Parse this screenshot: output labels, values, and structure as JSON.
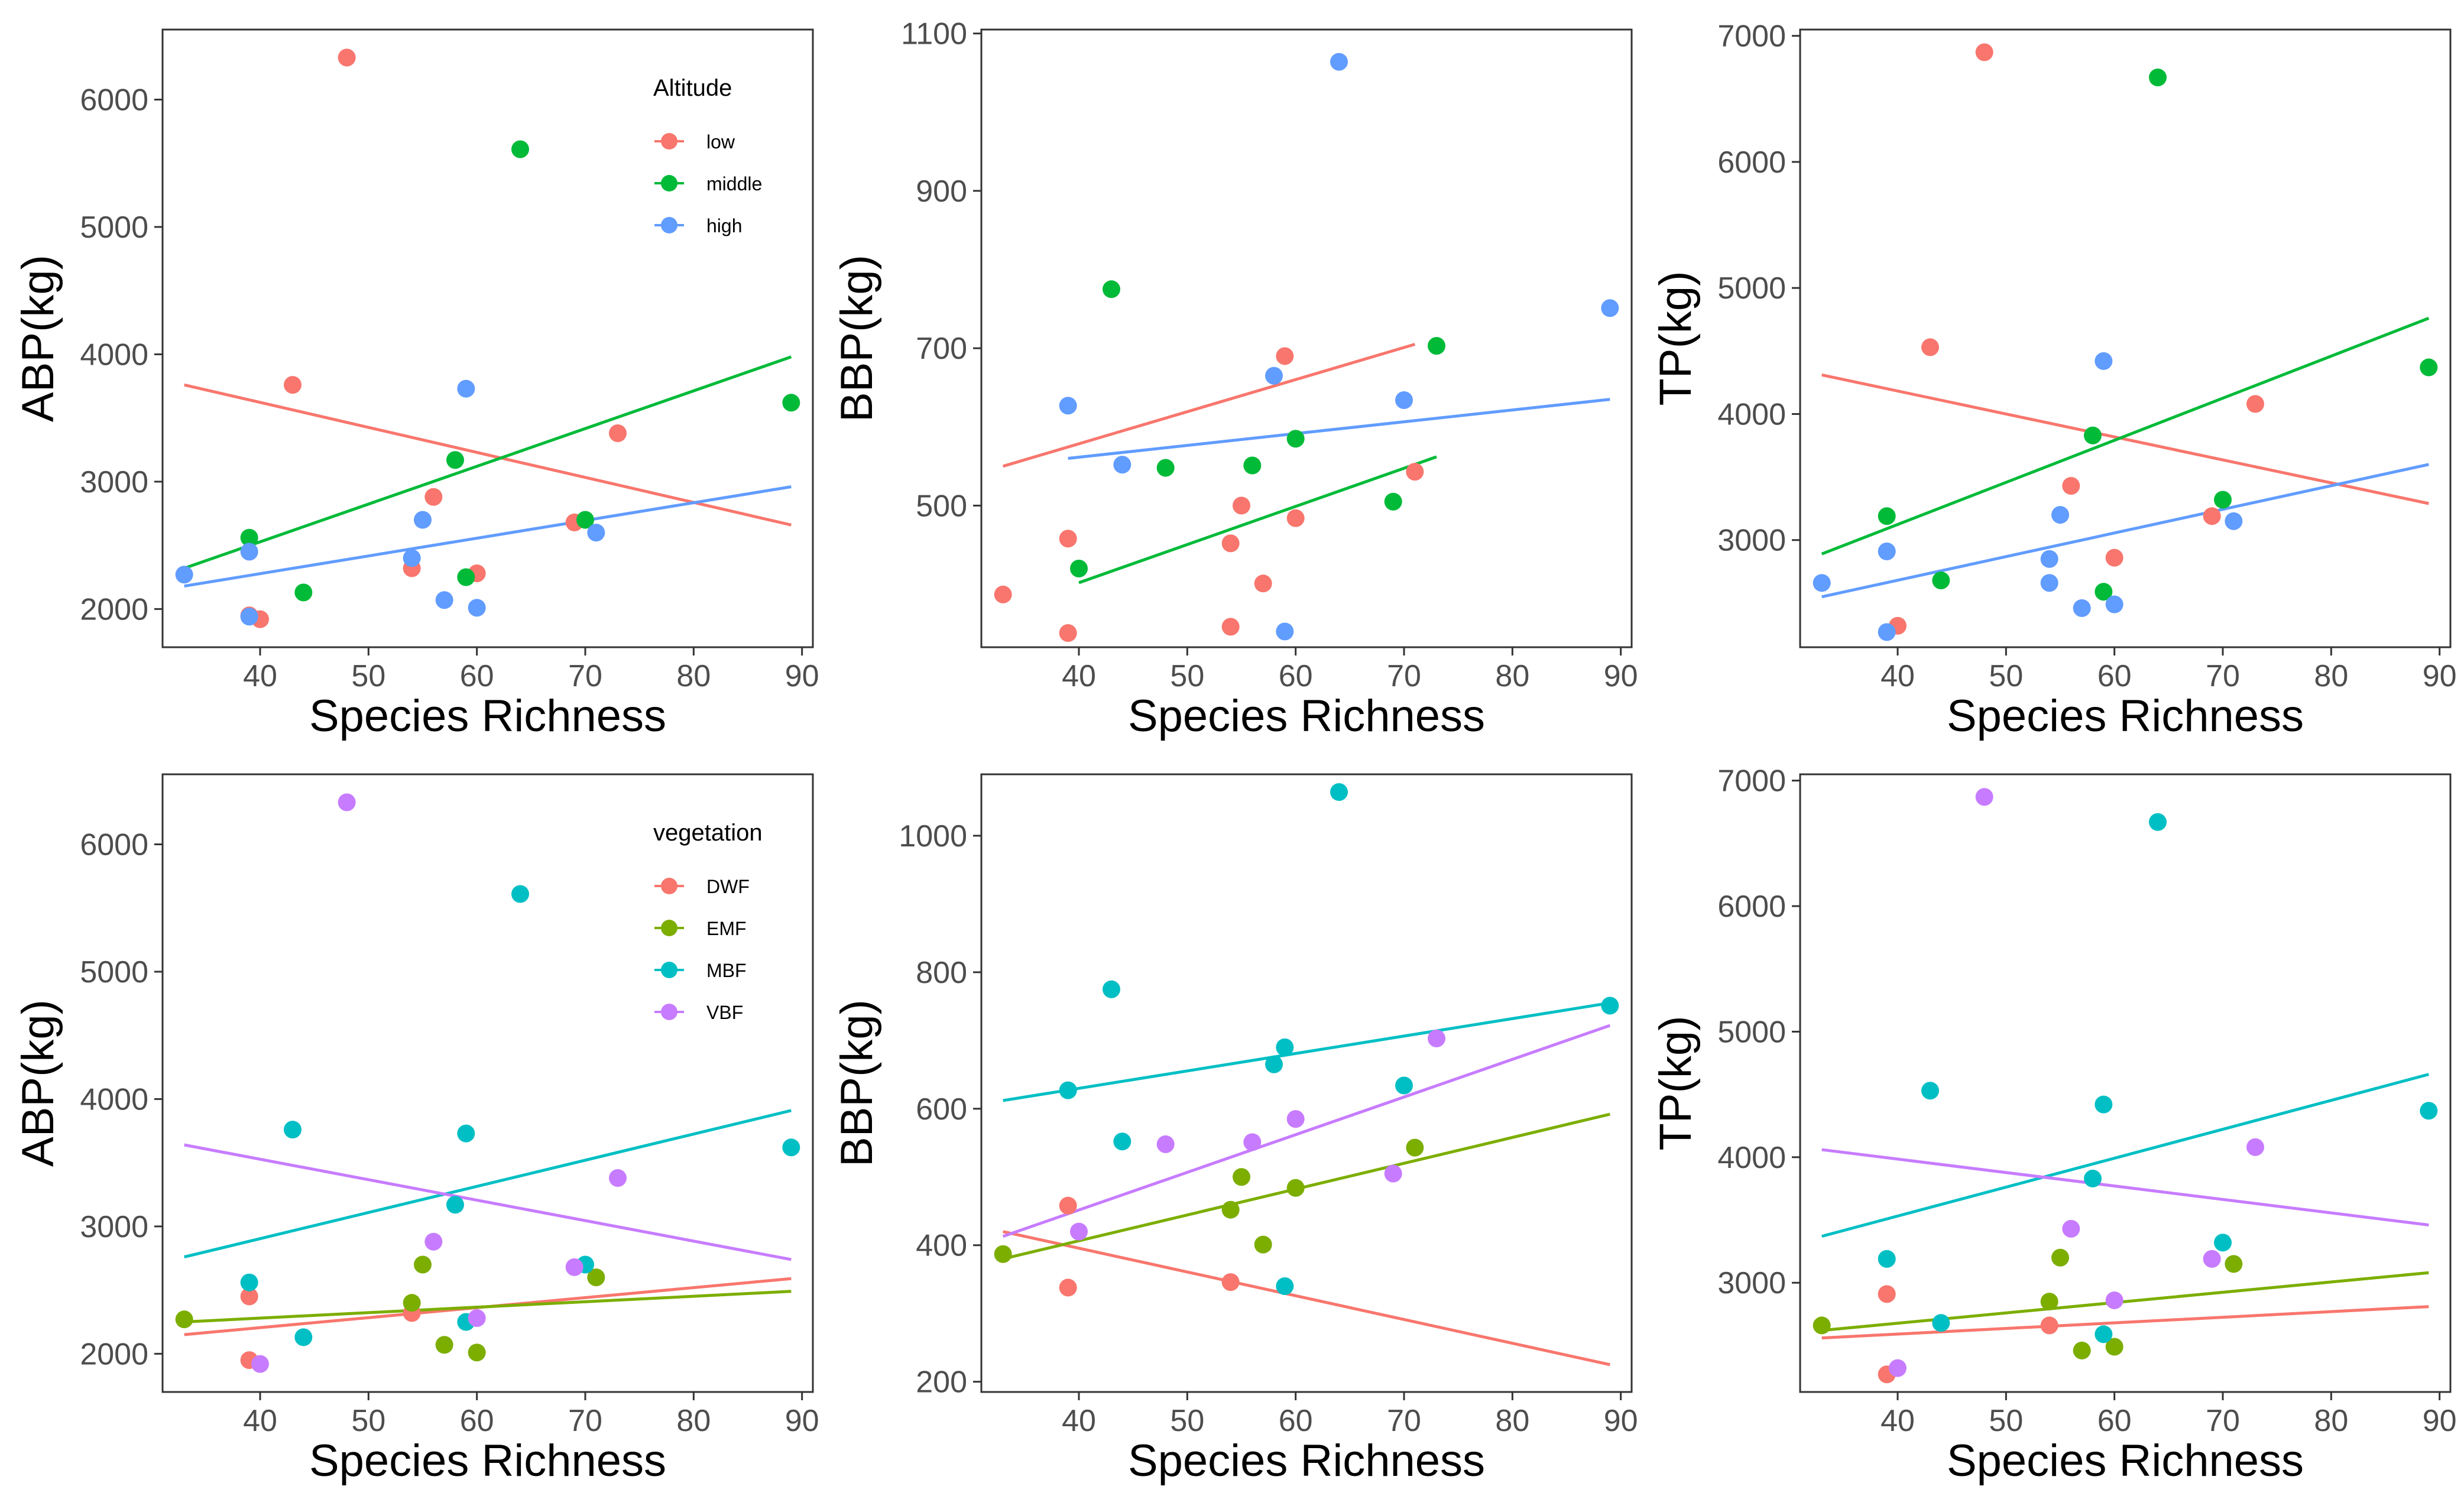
{
  "colors": {
    "low": "#F8766D",
    "middle": "#00BA38",
    "high": "#619CFF",
    "DWF": "#F8766D",
    "EMF": "#7CAE00",
    "MBF": "#00BFC4",
    "VBF": "#C77CFF",
    "axis": "#333333",
    "tick_text": "#4d4d4d"
  },
  "chart_data": [
    {
      "id": "abp-altitude",
      "type": "scatter",
      "xlabel": "Species Richness",
      "ylabel": "ABP(kg)",
      "xlim": [
        31,
        91
      ],
      "ylim": [
        1700,
        6550
      ],
      "xticks": [
        40,
        50,
        60,
        70,
        80,
        90
      ],
      "yticks": [
        2000,
        3000,
        4000,
        5000,
        6000
      ],
      "legend": {
        "title": "Altitude",
        "position": "top-right"
      },
      "series": [
        {
          "name": "low",
          "color_key": "low",
          "points": [
            [
              39,
              1950
            ],
            [
              40,
              1920
            ],
            [
              43,
              3760
            ],
            [
              48,
              6330
            ],
            [
              54,
              2320
            ],
            [
              56,
              2880
            ],
            [
              60,
              2280
            ],
            [
              69,
              2680
            ],
            [
              73,
              3380
            ]
          ],
          "fit": [
            [
              33,
              3760
            ],
            [
              89,
              2660
            ]
          ]
        },
        {
          "name": "middle",
          "color_key": "middle",
          "points": [
            [
              39,
              2560
            ],
            [
              44,
              2130
            ],
            [
              58,
              3170
            ],
            [
              59,
              2250
            ],
            [
              64,
              5610
            ],
            [
              70,
              2700
            ],
            [
              89,
              3620
            ]
          ],
          "fit": [
            [
              33,
              2320
            ],
            [
              89,
              3980
            ]
          ]
        },
        {
          "name": "high",
          "color_key": "high",
          "points": [
            [
              33,
              2270
            ],
            [
              39,
              1940
            ],
            [
              39,
              2450
            ],
            [
              54,
              2400
            ],
            [
              55,
              2700
            ],
            [
              57,
              2070
            ],
            [
              59,
              3730
            ],
            [
              60,
              2010
            ],
            [
              71,
              2600
            ]
          ],
          "fit": [
            [
              33,
              2180
            ],
            [
              89,
              2960
            ]
          ]
        }
      ]
    },
    {
      "id": "bbp-altitude",
      "type": "scatter",
      "xlabel": "Species Richness",
      "ylabel": "BBP(kg)",
      "xlim": [
        31,
        91
      ],
      "ylim": [
        320,
        1105
      ],
      "xticks": [
        40,
        50,
        60,
        70,
        80,
        90
      ],
      "yticks": [
        500,
        700,
        900,
        1100
      ],
      "series": [
        {
          "name": "low",
          "color_key": "low",
          "points": [
            [
              33,
              387
            ],
            [
              39,
              338
            ],
            [
              39,
              458
            ],
            [
              54,
              346
            ],
            [
              54,
              452
            ],
            [
              55,
              500
            ],
            [
              57,
              401
            ],
            [
              59,
              690
            ],
            [
              60,
              484
            ],
            [
              71,
              543
            ]
          ],
          "fit": [
            [
              33,
              550
            ],
            [
              71,
              705
            ]
          ]
        },
        {
          "name": "middle",
          "color_key": "middle",
          "points": [
            [
              40,
              420
            ],
            [
              43,
              775
            ],
            [
              48,
              548
            ],
            [
              56,
              551
            ],
            [
              60,
              585
            ],
            [
              69,
              505
            ],
            [
              73,
              703
            ]
          ],
          "fit": [
            [
              40,
              402
            ],
            [
              73,
              562
            ]
          ]
        },
        {
          "name": "high",
          "color_key": "high",
          "points": [
            [
              39,
              627
            ],
            [
              44,
              552
            ],
            [
              58,
              665
            ],
            [
              59,
              340
            ],
            [
              64,
              1064
            ],
            [
              70,
              634
            ],
            [
              89,
              751
            ]
          ],
          "fit": [
            [
              39,
              560
            ],
            [
              89,
              635
            ]
          ]
        }
      ]
    },
    {
      "id": "tp-altitude",
      "type": "scatter",
      "xlabel": "Species Richness",
      "ylabel": "TP(kg)",
      "xlim": [
        31,
        91
      ],
      "ylim": [
        2150,
        7050
      ],
      "xticks": [
        40,
        50,
        60,
        70,
        80,
        90
      ],
      "yticks": [
        3000,
        4000,
        5000,
        6000,
        7000
      ],
      "series": [
        {
          "name": "low",
          "color_key": "low",
          "points": [
            [
              40,
              2320
            ],
            [
              43,
              4530
            ],
            [
              48,
              6870
            ],
            [
              56,
              3430
            ],
            [
              60,
              2860
            ],
            [
              69,
              3190
            ],
            [
              73,
              4080
            ]
          ],
          "fit": [
            [
              33,
              4310
            ],
            [
              89,
              3290
            ]
          ]
        },
        {
          "name": "middle",
          "color_key": "middle",
          "points": [
            [
              39,
              3190
            ],
            [
              44,
              2680
            ],
            [
              58,
              3830
            ],
            [
              59,
              2590
            ],
            [
              64,
              6670
            ],
            [
              70,
              3320
            ],
            [
              89,
              4370
            ]
          ],
          "fit": [
            [
              33,
              2890
            ],
            [
              89,
              4760
            ]
          ]
        },
        {
          "name": "high",
          "color_key": "high",
          "points": [
            [
              33,
              2660
            ],
            [
              39,
              2270
            ],
            [
              39,
              2910
            ],
            [
              54,
              2850
            ],
            [
              54,
              2660
            ],
            [
              55,
              3200
            ],
            [
              57,
              2460
            ],
            [
              59,
              4420
            ],
            [
              60,
              2490
            ],
            [
              71,
              3150
            ]
          ],
          "fit": [
            [
              33,
              2550
            ],
            [
              89,
              3600
            ]
          ]
        }
      ]
    },
    {
      "id": "abp-vegetation",
      "type": "scatter",
      "xlabel": "Species Richness",
      "ylabel": "ABP(kg)",
      "xlim": [
        31,
        91
      ],
      "ylim": [
        1700,
        6550
      ],
      "xticks": [
        40,
        50,
        60,
        70,
        80,
        90
      ],
      "yticks": [
        2000,
        3000,
        4000,
        5000,
        6000
      ],
      "legend": {
        "title": "vegetation",
        "position": "top-right"
      },
      "series": [
        {
          "name": "DWF",
          "color_key": "DWF",
          "points": [
            [
              39,
              2450
            ],
            [
              39,
              1950
            ],
            [
              54,
              2320
            ]
          ],
          "fit": [
            [
              33,
              2150
            ],
            [
              89,
              2590
            ]
          ]
        },
        {
          "name": "EMF",
          "color_key": "EMF",
          "points": [
            [
              33,
              2270
            ],
            [
              54,
              2400
            ],
            [
              55,
              2700
            ],
            [
              57,
              2070
            ],
            [
              60,
              2010
            ],
            [
              71,
              2600
            ]
          ],
          "fit": [
            [
              33,
              2250
            ],
            [
              89,
              2490
            ]
          ]
        },
        {
          "name": "MBF",
          "color_key": "MBF",
          "points": [
            [
              39,
              2560
            ],
            [
              43,
              3760
            ],
            [
              44,
              2130
            ],
            [
              58,
              3170
            ],
            [
              59,
              3730
            ],
            [
              59,
              2250
            ],
            [
              64,
              5610
            ],
            [
              70,
              2700
            ],
            [
              89,
              3620
            ]
          ],
          "fit": [
            [
              33,
              2760
            ],
            [
              89,
              3910
            ]
          ]
        },
        {
          "name": "VBF",
          "color_key": "VBF",
          "points": [
            [
              40,
              1920
            ],
            [
              48,
              6330
            ],
            [
              56,
              2880
            ],
            [
              60,
              2280
            ],
            [
              69,
              2680
            ],
            [
              73,
              3380
            ]
          ],
          "fit": [
            [
              33,
              3640
            ],
            [
              89,
              2740
            ]
          ]
        }
      ]
    },
    {
      "id": "bbp-vegetation",
      "type": "scatter",
      "xlabel": "Species Richness",
      "ylabel": "BBP(kg)",
      "xlim": [
        31,
        91
      ],
      "ylim": [
        185,
        1090
      ],
      "xticks": [
        40,
        50,
        60,
        70,
        80,
        90
      ],
      "yticks": [
        200,
        400,
        600,
        800,
        1000
      ],
      "series": [
        {
          "name": "DWF",
          "color_key": "DWF",
          "points": [
            [
              39,
              338
            ],
            [
              39,
              458
            ],
            [
              54,
              346
            ]
          ],
          "fit": [
            [
              33,
              420
            ],
            [
              89,
              225
            ]
          ]
        },
        {
          "name": "EMF",
          "color_key": "EMF",
          "points": [
            [
              33,
              387
            ],
            [
              54,
              452
            ],
            [
              55,
              500
            ],
            [
              57,
              401
            ],
            [
              60,
              484
            ],
            [
              71,
              543
            ]
          ],
          "fit": [
            [
              33,
              380
            ],
            [
              89,
              592
            ]
          ]
        },
        {
          "name": "MBF",
          "color_key": "MBF",
          "points": [
            [
              39,
              627
            ],
            [
              43,
              775
            ],
            [
              44,
              552
            ],
            [
              58,
              665
            ],
            [
              59,
              690
            ],
            [
              59,
              340
            ],
            [
              64,
              1064
            ],
            [
              70,
              634
            ],
            [
              89,
              751
            ]
          ],
          "fit": [
            [
              33,
              612
            ],
            [
              89,
              755
            ]
          ]
        },
        {
          "name": "VBF",
          "color_key": "VBF",
          "points": [
            [
              40,
              420
            ],
            [
              48,
              548
            ],
            [
              56,
              551
            ],
            [
              60,
              585
            ],
            [
              69,
              505
            ],
            [
              73,
              703
            ]
          ],
          "fit": [
            [
              33,
              413
            ],
            [
              89,
              722
            ]
          ]
        }
      ]
    },
    {
      "id": "tp-vegetation",
      "type": "scatter",
      "xlabel": "Species Richness",
      "ylabel": "TP(kg)",
      "xlim": [
        31,
        91
      ],
      "ylim": [
        2130,
        7050
      ],
      "xticks": [
        40,
        50,
        60,
        70,
        80,
        90
      ],
      "yticks": [
        3000,
        4000,
        5000,
        6000,
        7000
      ],
      "series": [
        {
          "name": "DWF",
          "color_key": "DWF",
          "points": [
            [
              39,
              2270
            ],
            [
              39,
              2910
            ],
            [
              54,
              2660
            ]
          ],
          "fit": [
            [
              33,
              2560
            ],
            [
              89,
              2810
            ]
          ]
        },
        {
          "name": "EMF",
          "color_key": "EMF",
          "points": [
            [
              33,
              2660
            ],
            [
              54,
              2850
            ],
            [
              55,
              3200
            ],
            [
              57,
              2460
            ],
            [
              60,
              2490
            ],
            [
              71,
              3150
            ]
          ],
          "fit": [
            [
              33,
              2620
            ],
            [
              89,
              3080
            ]
          ]
        },
        {
          "name": "MBF",
          "color_key": "MBF",
          "points": [
            [
              39,
              3190
            ],
            [
              43,
              4530
            ],
            [
              44,
              2680
            ],
            [
              58,
              3830
            ],
            [
              59,
              4420
            ],
            [
              59,
              2590
            ],
            [
              64,
              6670
            ],
            [
              70,
              3320
            ],
            [
              89,
              4370
            ]
          ],
          "fit": [
            [
              33,
              3370
            ],
            [
              89,
              4660
            ]
          ]
        },
        {
          "name": "VBF",
          "color_key": "VBF",
          "points": [
            [
              40,
              2320
            ],
            [
              48,
              6870
            ],
            [
              56,
              3430
            ],
            [
              60,
              2860
            ],
            [
              69,
              3190
            ],
            [
              73,
              4080
            ]
          ],
          "fit": [
            [
              33,
              4060
            ],
            [
              89,
              3460
            ]
          ]
        }
      ]
    }
  ]
}
